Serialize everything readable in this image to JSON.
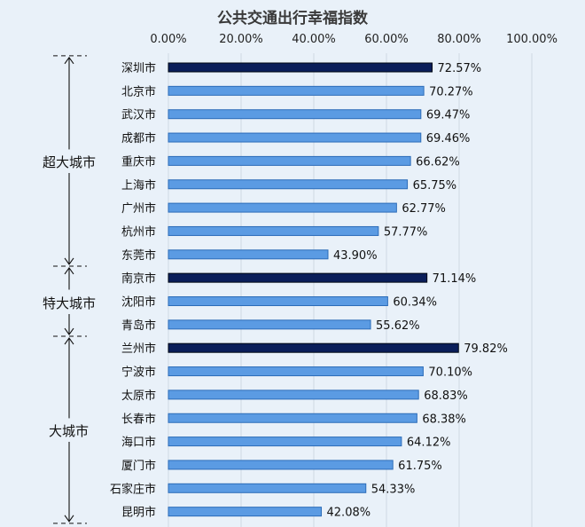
{
  "chart_data": {
    "type": "bar",
    "orientation": "horizontal",
    "title": "公共交通出行幸福指数",
    "x_ticks": [
      "0.00%",
      "20.00%",
      "40.00%",
      "60.00%",
      "80.00%",
      "100.00%"
    ],
    "xlim": [
      0,
      100
    ],
    "grid": true,
    "categories": [
      "深圳市",
      "北京市",
      "武汉市",
      "成都市",
      "重庆市",
      "上海市",
      "广州市",
      "杭州市",
      "东莞市",
      "南京市",
      "沈阳市",
      "青岛市",
      "兰州市",
      "宁波市",
      "太原市",
      "长春市",
      "海口市",
      "厦门市",
      "石家庄市",
      "昆明市"
    ],
    "values": [
      72.57,
      70.27,
      69.47,
      69.46,
      66.62,
      65.75,
      62.77,
      57.77,
      43.9,
      71.14,
      60.34,
      55.62,
      79.82,
      70.1,
      68.83,
      68.38,
      64.12,
      61.75,
      54.33,
      42.08
    ],
    "value_labels": [
      "72.57%",
      "70.27%",
      "69.47%",
      "69.46%",
      "66.62%",
      "65.75%",
      "62.77%",
      "57.77%",
      "43.90%",
      "71.14%",
      "60.34%",
      "55.62%",
      "79.82%",
      "70.10%",
      "68.83%",
      "68.38%",
      "64.12%",
      "61.75%",
      "54.33%",
      "42.08%"
    ],
    "highlighted": [
      "深圳市",
      "南京市",
      "兰州市"
    ],
    "groups": [
      {
        "label": "超大城市",
        "start": 0,
        "end": 8
      },
      {
        "label": "特大城市",
        "start": 9,
        "end": 11
      },
      {
        "label": "大城市",
        "start": 12,
        "end": 19
      }
    ],
    "colors": {
      "bar": "#5b9be3",
      "bar_border": "#2c6cb8",
      "highlight": "#0a1e5a",
      "grid": "#cfd9e4",
      "background": "#e9f1f9"
    }
  }
}
